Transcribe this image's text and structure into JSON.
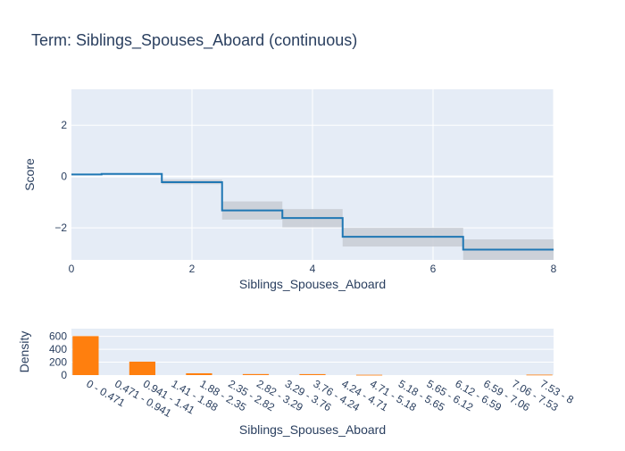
{
  "chart_data": [
    {
      "type": "line",
      "subtype": "step",
      "title": "Term: Siblings_Spouses_Aboard (continuous)",
      "xlabel": "Siblings_Spouses_Aboard",
      "ylabel": "Score",
      "xlim": [
        0,
        8
      ],
      "ylim": [
        -3.25,
        3.4
      ],
      "x_ticks": [
        0,
        2,
        4,
        6,
        8
      ],
      "y_ticks": [
        2,
        0,
        -2
      ],
      "y_tick_labels": [
        "2",
        "0",
        "−2"
      ],
      "grid": true,
      "legend": "none",
      "colors": {
        "line": "#1f77b4",
        "band": "#c8cdd4",
        "plot_bg": "#e5ecf6",
        "grid": "#ffffff"
      },
      "steps": [
        {
          "x0": 0,
          "x1": 0.5,
          "y": 0.08,
          "lower": 0.08,
          "upper": 0.08
        },
        {
          "x0": 0.5,
          "x1": 1.5,
          "y": 0.1,
          "lower": 0.1,
          "upper": 0.1
        },
        {
          "x0": 1.5,
          "x1": 2.5,
          "y": -0.22,
          "lower": -0.3,
          "upper": -0.12
        },
        {
          "x0": 2.5,
          "x1": 3.5,
          "y": -1.32,
          "lower": -1.68,
          "upper": -0.97
        },
        {
          "x0": 3.5,
          "x1": 4.5,
          "y": -1.62,
          "lower": -1.98,
          "upper": -1.27
        },
        {
          "x0": 4.5,
          "x1": 6.5,
          "y": -2.35,
          "lower": -2.73,
          "upper": -2.0
        },
        {
          "x0": 6.5,
          "x1": 8,
          "y": -2.85,
          "lower": -3.25,
          "upper": -2.45
        }
      ]
    },
    {
      "type": "bar",
      "xlabel": "Siblings_Spouses_Aboard",
      "ylabel": "Density",
      "ylim": [
        0,
        720
      ],
      "y_ticks": [
        0,
        200,
        400,
        600
      ],
      "grid": true,
      "legend": "none",
      "colors": {
        "bar": "#ff7f0e",
        "plot_bg": "#e5ecf6",
        "grid": "#ffffff"
      },
      "categories": [
        "0 - 0.471",
        "0.471 - 0.941",
        "0.941 - 1.41",
        "1.41 - 1.88",
        "1.88 - 2.35",
        "2.35 - 2.82",
        "2.82 - 3.29",
        "3.29 - 3.76",
        "3.76 - 4.24",
        "4.24 - 4.71",
        "4.71 - 5.18",
        "5.18 - 5.65",
        "5.65 - 6.12",
        "6.12 - 6.59",
        "6.59 - 7.06",
        "7.06 - 7.53",
        "7.53 - 8"
      ],
      "values": [
        604,
        0,
        208,
        0,
        28,
        0,
        16,
        0,
        15,
        0,
        5,
        0,
        0,
        0,
        0,
        0,
        7
      ]
    }
  ]
}
